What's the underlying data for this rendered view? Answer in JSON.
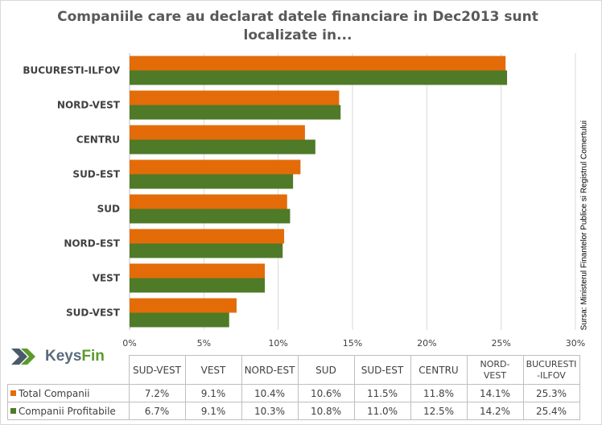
{
  "title": "Companiile care au declarat datele financiare in Dec2013 sunt localizate in...",
  "source": "Sursa: Ministerul Finantelor Publice si Registrul Comertului",
  "logo": {
    "part1": "Keys",
    "part2": "Fin",
    "icon": "double-chevron-icon"
  },
  "colors": {
    "total": "#e36c09",
    "profitabile": "#4f7a28",
    "grid": "#d9d9d9"
  },
  "chart_data": {
    "type": "bar",
    "orientation": "horizontal",
    "title": "Companiile care au declarat datele financiare in Dec2013 sunt localizate in...",
    "categories": [
      "SUD-VEST",
      "VEST",
      "NORD-EST",
      "SUD",
      "SUD-EST",
      "CENTRU",
      "NORD-VEST",
      "BUCURESTI-ILFOV"
    ],
    "series": [
      {
        "name": "Total Companii",
        "values": [
          7.2,
          9.1,
          10.4,
          10.6,
          11.5,
          11.8,
          14.1,
          25.3
        ],
        "labels": [
          "7.2%",
          "9.1%",
          "10.4%",
          "10.6%",
          "11.5%",
          "11.8%",
          "14.1%",
          "25.3%"
        ]
      },
      {
        "name": "Companii Profitabile",
        "values": [
          6.7,
          9.1,
          10.3,
          10.8,
          11.0,
          12.5,
          14.2,
          25.4
        ],
        "labels": [
          "6.7%",
          "9.1%",
          "10.3%",
          "10.8%",
          "11.0%",
          "12.5%",
          "14.2%",
          "25.4%"
        ]
      }
    ],
    "xlim": [
      0,
      30
    ],
    "xticks": [
      0,
      5,
      10,
      15,
      20,
      25,
      30
    ],
    "xtick_labels": [
      "0%",
      "5%",
      "10%",
      "15%",
      "20%",
      "25%",
      "30%"
    ],
    "grid": true,
    "legend": "data table below chart"
  },
  "table": {
    "headers": [
      "SUD-VEST",
      "VEST",
      "NORD-EST",
      "SUD",
      "SUD-EST",
      "CENTRU",
      "NORD-\nVEST",
      "BUCURESTI\n-ILFOV"
    ]
  }
}
